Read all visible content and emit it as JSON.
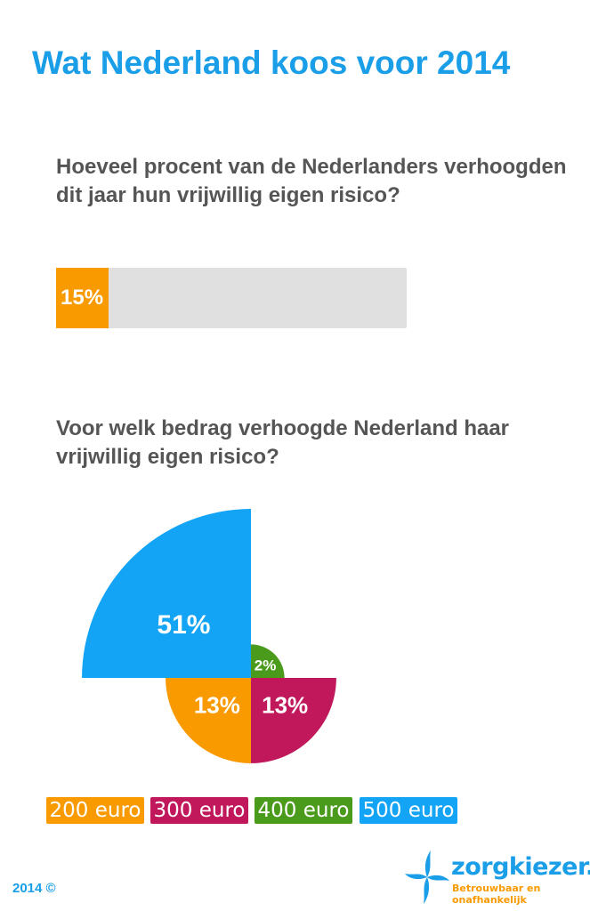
{
  "title": "Wat Nederland koos voor 2014",
  "question1": "Hoeveel procent van de Nederlanders verhoogden dit jaar hun vrijwillig eigen risico?",
  "progress": {
    "value": 15,
    "label": "15%",
    "fill_color": "#f99a00",
    "track_color": "#e0e0e0"
  },
  "question2": "Voor welk bedrag verhoogde Nederland haar vrijwillig eigen risico?",
  "chart_data": {
    "type": "polar-area",
    "categories": [
      "200 euro",
      "300 euro",
      "400 euro",
      "500 euro"
    ],
    "values": [
      13,
      13,
      2,
      51
    ],
    "labels": [
      "13%",
      "13%",
      "2%",
      "51%"
    ],
    "colors": [
      "#f99a00",
      "#c0185a",
      "#4a9a1c",
      "#14a4f5"
    ],
    "legend": "bottom"
  },
  "footer": {
    "copyright": "2014 ©",
    "logo_text": "zorgkiezer.nl",
    "tagline": "Betrouwbaar en onafhankelijk"
  }
}
